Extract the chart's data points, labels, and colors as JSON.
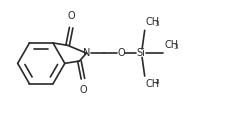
{
  "bg_color": "#ffffff",
  "line_color": "#2a2a2a",
  "text_color": "#2a2a2a",
  "lw": 1.2,
  "font_size": 7.0,
  "sub_font_size": 5.2,
  "fig_width": 2.38,
  "fig_height": 1.27,
  "dpi": 100,
  "xlim": [
    0,
    10
  ],
  "ylim": [
    0,
    5.33
  ]
}
